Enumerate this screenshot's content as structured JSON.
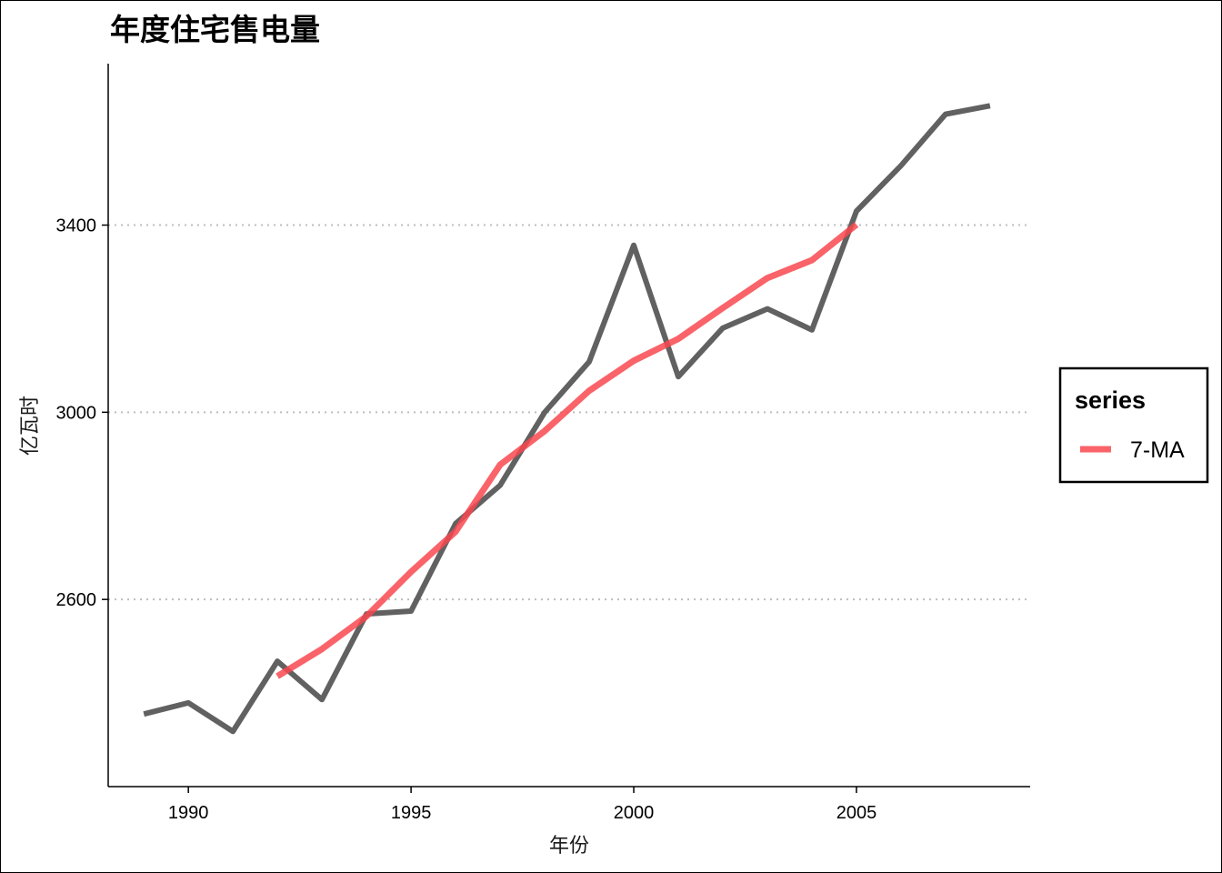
{
  "chart_data": {
    "type": "line",
    "title": "年度住宅售电量",
    "xlabel": "年份",
    "ylabel": "亿瓦时",
    "xlim": [
      1988.2,
      2008.9
    ],
    "ylim": [
      2200,
      3745
    ],
    "xticks": [
      1990,
      1995,
      2000,
      2005
    ],
    "yticks": [
      2600,
      3000,
      3400
    ],
    "grid": "horizontal-dotted",
    "legend": {
      "title": "series",
      "placement": "right"
    },
    "series": [
      {
        "color": "#595959",
        "x": [
          1989,
          1990,
          1991,
          1992,
          1993,
          1994,
          1995,
          1996,
          1997,
          1998,
          1999,
          2000,
          2001,
          2002,
          2003,
          2004,
          2005,
          2006,
          2007,
          2008
        ],
        "y": [
          2355,
          2379,
          2318,
          2468,
          2386,
          2569,
          2575,
          2762,
          2844,
          3000,
          3108,
          3357,
          3076,
          3180,
          3221,
          3176,
          3430,
          3527,
          3637,
          3655
        ]
      },
      {
        "name": "7-MA",
        "color": "#f8484f",
        "x": [
          1992,
          1993,
          1994,
          1995,
          1996,
          1997,
          1998,
          1999,
          2000,
          2001,
          2002,
          2003,
          2004,
          2005
        ],
        "y": [
          2436,
          2494,
          2564,
          2659,
          2745,
          2888,
          2960,
          3046,
          3110,
          3157,
          3223,
          3287,
          3325,
          3401
        ]
      }
    ]
  }
}
